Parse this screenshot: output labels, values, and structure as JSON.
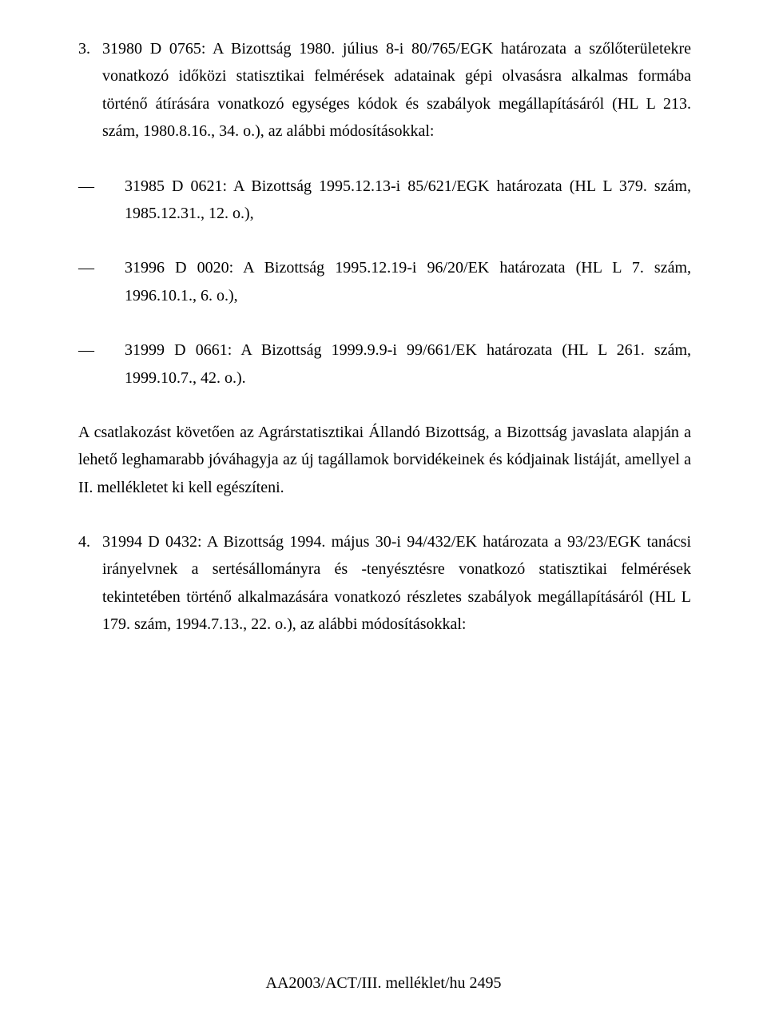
{
  "para1": {
    "number": "3.",
    "text": "31980 D 0765: A Bizottság 1980. július 8-i 80/765/EGK határozata a szőlőterületekre vonatkozó időközi statisztikai felmérések adatainak gépi olvasásra alkalmas formába történő átírására vonatkozó egységes kódok és szabályok megállapításáról (HL L 213. szám, 1980.8.16., 34. o.), az alábbi módosításokkal:"
  },
  "subitems": [
    "31985 D 0621: A Bizottság 1995.12.13-i 85/621/EGK határozata (HL L 379. szám, 1985.12.31., 12. o.),",
    "31996 D 0020: A Bizottság 1995.12.19-i 96/20/EK határozata (HL L 7. szám, 1996.10.1., 6. o.),",
    "31999 D 0661: A Bizottság 1999.9.9-i 99/661/EK határozata (HL L 261. szám, 1999.10.7., 42. o.)."
  ],
  "para2": "A csatlakozást követően az Agrárstatisztikai Állandó Bizottság, a Bizottság javaslata alapján a lehető leghamarabb jóváhagyja az új tagállamok borvidékeinek és kódjainak listáját, amellyel a II. mellékletet ki kell egészíteni.",
  "para3": {
    "number": "4.",
    "text": "31994 D 0432: A Bizottság 1994. május 30-i 94/432/EK határozata a 93/23/EGK tanácsi irányelvnek a sertésállományra és -tenyésztésre vonatkozó statisztikai felmérések tekintetében történő alkalmazására vonatkozó részletes szabályok megállapításáról (HL L 179. szám, 1994.7.13., 22. o.), az alábbi módosításokkal:"
  },
  "footer": "AA2003/ACT/III. melléklet/hu 2495",
  "dash": "—"
}
